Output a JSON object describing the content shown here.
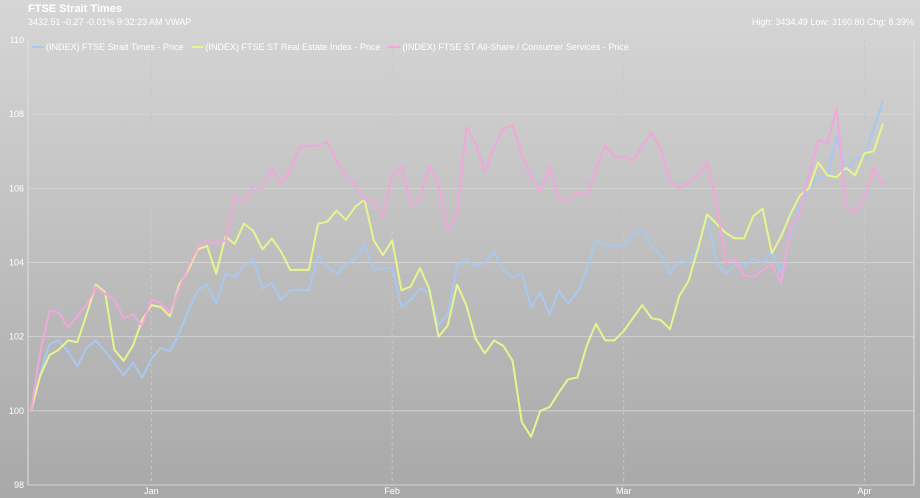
{
  "header": {
    "title": "FTSE Strait Times",
    "subtitle": "3432.51 -0.27 -0.01% 9:32:23 AM VWAP",
    "stats": "High: 3434.49 Low: 3160.80 Chg: 8.39%"
  },
  "chart_data": {
    "type": "line",
    "title": "",
    "xlabel": "",
    "ylabel": "",
    "ylim": [
      98,
      110
    ],
    "yticks": [
      98,
      100,
      102,
      104,
      106,
      108,
      110
    ],
    "xticks": [
      {
        "label": "Jan",
        "index": 13
      },
      {
        "label": "Feb",
        "index": 39
      },
      {
        "label": "Mar",
        "index": 64
      },
      {
        "label": "Apr",
        "index": 90
      }
    ],
    "grid": true,
    "legend_position": "top-left",
    "series": [
      {
        "name": "(INDEX) FTSE Strait Times - Price",
        "color": "#a8c8f0",
        "values": [
          100,
          101.0,
          101.8,
          101.9,
          101.6,
          101.2,
          101.7,
          101.9,
          101.6,
          101.3,
          100.95,
          101.3,
          100.9,
          101.4,
          101.7,
          101.6,
          102.1,
          102.7,
          103.25,
          103.4,
          102.9,
          103.7,
          103.6,
          103.9,
          104.1,
          103.3,
          103.45,
          103.0,
          103.25,
          103.25,
          103.25,
          104.2,
          103.9,
          103.7,
          103.95,
          104.1,
          104.5,
          103.8,
          103.85,
          103.85,
          102.8,
          103.0,
          103.3,
          103.2,
          102.3,
          102.6,
          103.9,
          104.1,
          103.9,
          104.0,
          104.3,
          103.8,
          103.6,
          103.7,
          102.8,
          103.2,
          102.6,
          103.25,
          102.9,
          103.2,
          103.8,
          104.6,
          104.45,
          104.45,
          104.45,
          104.75,
          104.9,
          104.45,
          104.2,
          103.7,
          104.05,
          104.0,
          104.4,
          105.2,
          104.0,
          103.7,
          103.95,
          103.9,
          104.1,
          104.0,
          104.3,
          103.7,
          104.75,
          105.5,
          106.0,
          106.3,
          106.35,
          107.4,
          106.45,
          106.8,
          106.85,
          107.6,
          108.35
        ]
      },
      {
        "name": "(INDEX) FTSE ST Real Estate Index - Price",
        "color": "#e8f58e",
        "values": [
          100,
          100.95,
          101.5,
          101.65,
          101.9,
          101.85,
          102.6,
          103.4,
          103.2,
          101.65,
          101.35,
          101.75,
          102.45,
          102.85,
          102.8,
          102.55,
          103.4,
          103.8,
          104.35,
          104.45,
          103.7,
          104.7,
          104.5,
          105.05,
          104.85,
          104.35,
          104.65,
          104.3,
          103.8,
          103.8,
          103.8,
          105.05,
          105.1,
          105.4,
          105.15,
          105.5,
          105.7,
          104.6,
          104.2,
          104.6,
          103.25,
          103.35,
          103.85,
          103.3,
          102.0,
          102.3,
          103.4,
          102.85,
          101.95,
          101.55,
          101.9,
          101.75,
          101.35,
          99.7,
          99.3,
          100.0,
          100.1,
          100.5,
          100.85,
          100.9,
          101.75,
          102.35,
          101.9,
          101.9,
          102.15,
          102.5,
          102.85,
          102.5,
          102.45,
          102.2,
          103.1,
          103.5,
          104.35,
          105.3,
          105.05,
          104.8,
          104.65,
          104.65,
          105.25,
          105.45,
          104.25,
          104.7,
          105.3,
          105.8,
          106.0,
          106.7,
          106.35,
          106.3,
          106.55,
          106.35,
          106.95,
          107.0,
          107.75
        ]
      },
      {
        "name": "(INDEX) FTSE ST All-Share / Consumer Services - Price",
        "color": "#f2a6dc",
        "values": [
          100,
          101.6,
          102.7,
          102.65,
          102.25,
          102.55,
          102.85,
          103.35,
          103.15,
          103.0,
          102.5,
          102.6,
          102.3,
          103.0,
          102.9,
          102.65,
          103.3,
          103.9,
          104.4,
          104.6,
          104.5,
          104.6,
          105.8,
          105.6,
          106.05,
          106.0,
          106.55,
          106.1,
          106.5,
          107.1,
          107.15,
          107.15,
          107.25,
          106.75,
          106.35,
          106.1,
          105.7,
          105.65,
          105.25,
          106.35,
          106.6,
          105.55,
          105.7,
          106.6,
          106.1,
          104.85,
          105.3,
          107.65,
          107.2,
          106.45,
          107.1,
          107.6,
          107.7,
          106.9,
          106.3,
          105.9,
          106.6,
          105.75,
          105.65,
          105.9,
          105.8,
          106.5,
          107.15,
          106.85,
          106.85,
          106.75,
          107.15,
          107.5,
          107.05,
          106.2,
          106.0,
          106.15,
          106.35,
          106.7,
          105.7,
          104.0,
          104.1,
          103.65,
          103.6,
          103.8,
          103.95,
          103.45,
          104.9,
          105.35,
          106.35,
          107.3,
          107.2,
          108.15,
          105.45,
          105.35,
          105.75,
          106.55,
          106.1
        ]
      }
    ]
  }
}
